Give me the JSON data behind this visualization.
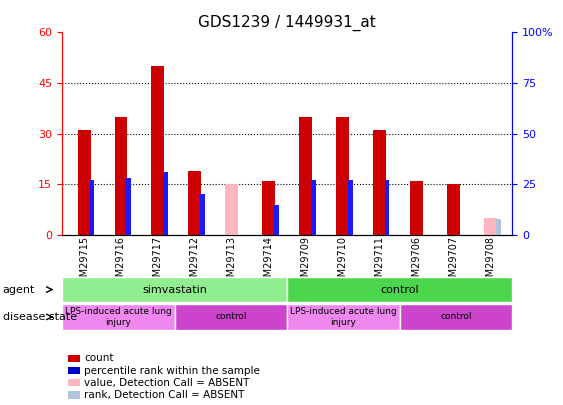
{
  "title": "GDS1239 / 1449931_at",
  "samples": [
    "GSM29715",
    "GSM29716",
    "GSM29717",
    "GSM29712",
    "GSM29713",
    "GSM29714",
    "GSM29709",
    "GSM29710",
    "GSM29711",
    "GSM29706",
    "GSM29707",
    "GSM29708"
  ],
  "count_values": [
    31,
    35,
    50,
    19,
    0,
    16,
    35,
    35,
    31,
    16,
    15,
    0
  ],
  "percentile_values": [
    27,
    28,
    31,
    20,
    0,
    15,
    27,
    27,
    27,
    0,
    0,
    0
  ],
  "absent_value_values": [
    0,
    0,
    0,
    0,
    15,
    0,
    0,
    0,
    0,
    0,
    0,
    5
  ],
  "absent_rank_values": [
    0,
    0,
    0,
    0,
    0,
    0,
    0,
    0,
    0,
    0,
    0,
    8
  ],
  "is_absent": [
    false,
    false,
    false,
    false,
    true,
    false,
    false,
    false,
    false,
    false,
    false,
    true
  ],
  "ylim_left": [
    0,
    60
  ],
  "ylim_right": [
    0,
    100
  ],
  "yticks_left": [
    0,
    15,
    30,
    45,
    60
  ],
  "ytick_labels_left": [
    "0",
    "15",
    "30",
    "45",
    "60"
  ],
  "ytick_labels_right": [
    "0",
    "25",
    "50",
    "75",
    "100%"
  ],
  "agent_groups": [
    {
      "label": "simvastatin",
      "start": 0,
      "end": 6,
      "color": "#90ee90"
    },
    {
      "label": "control",
      "start": 6,
      "end": 12,
      "color": "#4cd64c"
    }
  ],
  "disease_groups": [
    {
      "label": "LPS-induced acute lung\ninjury",
      "start": 0,
      "end": 3,
      "color": "#ee88ee"
    },
    {
      "label": "control",
      "start": 3,
      "end": 6,
      "color": "#cc44cc"
    },
    {
      "label": "LPS-induced acute lung\ninjury",
      "start": 6,
      "end": 9,
      "color": "#ee88ee"
    },
    {
      "label": "control",
      "start": 9,
      "end": 12,
      "color": "#cc44cc"
    }
  ],
  "legend_items": [
    {
      "label": "count",
      "color": "#cc0000"
    },
    {
      "label": "percentile rank within the sample",
      "color": "#0000cc"
    },
    {
      "label": "value, Detection Call = ABSENT",
      "color": "#ffb6c1"
    },
    {
      "label": "rank, Detection Call = ABSENT",
      "color": "#b0c4de"
    }
  ],
  "count_color": "#cc0000",
  "percentile_color": "#1a1aff",
  "absent_value_color": "#ffb6c1",
  "absent_rank_color": "#b0c4de"
}
